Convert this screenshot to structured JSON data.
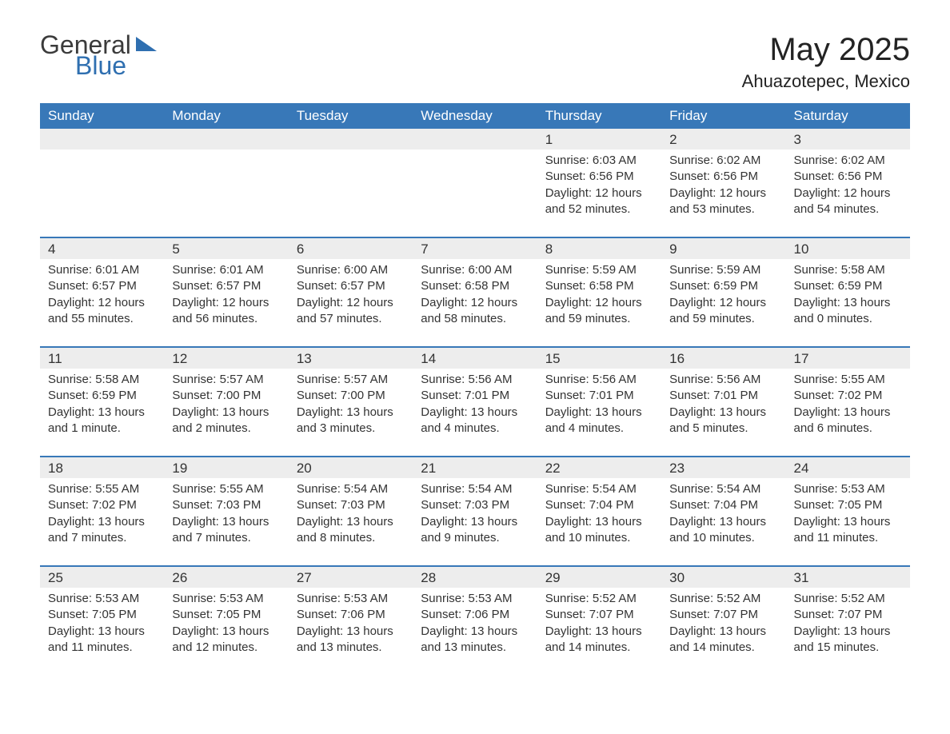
{
  "logo": {
    "line1": "General",
    "line2": "Blue"
  },
  "title": "May 2025",
  "location": "Ahuazotepec, Mexico",
  "colors": {
    "header_bg": "#3878b8",
    "header_text": "#ffffff",
    "daynum_bg": "#ededed",
    "week_border": "#3878b8",
    "text": "#333333",
    "logo_blue": "#2f6fb0"
  },
  "days_of_week": [
    "Sunday",
    "Monday",
    "Tuesday",
    "Wednesday",
    "Thursday",
    "Friday",
    "Saturday"
  ],
  "weeks": [
    [
      null,
      null,
      null,
      null,
      {
        "n": "1",
        "sr": "Sunrise: 6:03 AM",
        "ss": "Sunset: 6:56 PM",
        "dl": "Daylight: 12 hours and 52 minutes."
      },
      {
        "n": "2",
        "sr": "Sunrise: 6:02 AM",
        "ss": "Sunset: 6:56 PM",
        "dl": "Daylight: 12 hours and 53 minutes."
      },
      {
        "n": "3",
        "sr": "Sunrise: 6:02 AM",
        "ss": "Sunset: 6:56 PM",
        "dl": "Daylight: 12 hours and 54 minutes."
      }
    ],
    [
      {
        "n": "4",
        "sr": "Sunrise: 6:01 AM",
        "ss": "Sunset: 6:57 PM",
        "dl": "Daylight: 12 hours and 55 minutes."
      },
      {
        "n": "5",
        "sr": "Sunrise: 6:01 AM",
        "ss": "Sunset: 6:57 PM",
        "dl": "Daylight: 12 hours and 56 minutes."
      },
      {
        "n": "6",
        "sr": "Sunrise: 6:00 AM",
        "ss": "Sunset: 6:57 PM",
        "dl": "Daylight: 12 hours and 57 minutes."
      },
      {
        "n": "7",
        "sr": "Sunrise: 6:00 AM",
        "ss": "Sunset: 6:58 PM",
        "dl": "Daylight: 12 hours and 58 minutes."
      },
      {
        "n": "8",
        "sr": "Sunrise: 5:59 AM",
        "ss": "Sunset: 6:58 PM",
        "dl": "Daylight: 12 hours and 59 minutes."
      },
      {
        "n": "9",
        "sr": "Sunrise: 5:59 AM",
        "ss": "Sunset: 6:59 PM",
        "dl": "Daylight: 12 hours and 59 minutes."
      },
      {
        "n": "10",
        "sr": "Sunrise: 5:58 AM",
        "ss": "Sunset: 6:59 PM",
        "dl": "Daylight: 13 hours and 0 minutes."
      }
    ],
    [
      {
        "n": "11",
        "sr": "Sunrise: 5:58 AM",
        "ss": "Sunset: 6:59 PM",
        "dl": "Daylight: 13 hours and 1 minute."
      },
      {
        "n": "12",
        "sr": "Sunrise: 5:57 AM",
        "ss": "Sunset: 7:00 PM",
        "dl": "Daylight: 13 hours and 2 minutes."
      },
      {
        "n": "13",
        "sr": "Sunrise: 5:57 AM",
        "ss": "Sunset: 7:00 PM",
        "dl": "Daylight: 13 hours and 3 minutes."
      },
      {
        "n": "14",
        "sr": "Sunrise: 5:56 AM",
        "ss": "Sunset: 7:01 PM",
        "dl": "Daylight: 13 hours and 4 minutes."
      },
      {
        "n": "15",
        "sr": "Sunrise: 5:56 AM",
        "ss": "Sunset: 7:01 PM",
        "dl": "Daylight: 13 hours and 4 minutes."
      },
      {
        "n": "16",
        "sr": "Sunrise: 5:56 AM",
        "ss": "Sunset: 7:01 PM",
        "dl": "Daylight: 13 hours and 5 minutes."
      },
      {
        "n": "17",
        "sr": "Sunrise: 5:55 AM",
        "ss": "Sunset: 7:02 PM",
        "dl": "Daylight: 13 hours and 6 minutes."
      }
    ],
    [
      {
        "n": "18",
        "sr": "Sunrise: 5:55 AM",
        "ss": "Sunset: 7:02 PM",
        "dl": "Daylight: 13 hours and 7 minutes."
      },
      {
        "n": "19",
        "sr": "Sunrise: 5:55 AM",
        "ss": "Sunset: 7:03 PM",
        "dl": "Daylight: 13 hours and 7 minutes."
      },
      {
        "n": "20",
        "sr": "Sunrise: 5:54 AM",
        "ss": "Sunset: 7:03 PM",
        "dl": "Daylight: 13 hours and 8 minutes."
      },
      {
        "n": "21",
        "sr": "Sunrise: 5:54 AM",
        "ss": "Sunset: 7:03 PM",
        "dl": "Daylight: 13 hours and 9 minutes."
      },
      {
        "n": "22",
        "sr": "Sunrise: 5:54 AM",
        "ss": "Sunset: 7:04 PM",
        "dl": "Daylight: 13 hours and 10 minutes."
      },
      {
        "n": "23",
        "sr": "Sunrise: 5:54 AM",
        "ss": "Sunset: 7:04 PM",
        "dl": "Daylight: 13 hours and 10 minutes."
      },
      {
        "n": "24",
        "sr": "Sunrise: 5:53 AM",
        "ss": "Sunset: 7:05 PM",
        "dl": "Daylight: 13 hours and 11 minutes."
      }
    ],
    [
      {
        "n": "25",
        "sr": "Sunrise: 5:53 AM",
        "ss": "Sunset: 7:05 PM",
        "dl": "Daylight: 13 hours and 11 minutes."
      },
      {
        "n": "26",
        "sr": "Sunrise: 5:53 AM",
        "ss": "Sunset: 7:05 PM",
        "dl": "Daylight: 13 hours and 12 minutes."
      },
      {
        "n": "27",
        "sr": "Sunrise: 5:53 AM",
        "ss": "Sunset: 7:06 PM",
        "dl": "Daylight: 13 hours and 13 minutes."
      },
      {
        "n": "28",
        "sr": "Sunrise: 5:53 AM",
        "ss": "Sunset: 7:06 PM",
        "dl": "Daylight: 13 hours and 13 minutes."
      },
      {
        "n": "29",
        "sr": "Sunrise: 5:52 AM",
        "ss": "Sunset: 7:07 PM",
        "dl": "Daylight: 13 hours and 14 minutes."
      },
      {
        "n": "30",
        "sr": "Sunrise: 5:52 AM",
        "ss": "Sunset: 7:07 PM",
        "dl": "Daylight: 13 hours and 14 minutes."
      },
      {
        "n": "31",
        "sr": "Sunrise: 5:52 AM",
        "ss": "Sunset: 7:07 PM",
        "dl": "Daylight: 13 hours and 15 minutes."
      }
    ]
  ]
}
